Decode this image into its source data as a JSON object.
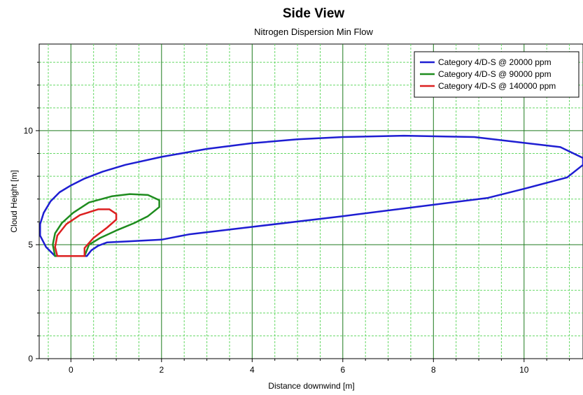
{
  "title": "Side View",
  "subtitle": "Nitrogen Dispersion Min Flow",
  "chart_data": {
    "type": "line",
    "title": "Side View",
    "subtitle": "Nitrogen Dispersion Min Flow",
    "xlabel": "Distance downwind [m]",
    "ylabel": "Cloud Height [m]",
    "xlim": [
      -0.7,
      11.3
    ],
    "ylim": [
      0,
      13.8
    ],
    "xticks": [
      0,
      2,
      4,
      6,
      8,
      10
    ],
    "yticks": [
      0,
      5,
      10
    ],
    "grid": true,
    "legend_position": "top-right",
    "series": [
      {
        "name": "Category 4/D-S @ 20000 ppm",
        "color": "#1e1ed2",
        "points": [
          [
            -0.35,
            4.5
          ],
          [
            -0.55,
            4.9
          ],
          [
            -0.68,
            5.4
          ],
          [
            -0.68,
            5.9
          ],
          [
            -0.6,
            6.4
          ],
          [
            -0.45,
            6.9
          ],
          [
            -0.25,
            7.3
          ],
          [
            0.0,
            7.6
          ],
          [
            0.3,
            7.9
          ],
          [
            0.7,
            8.2
          ],
          [
            1.2,
            8.5
          ],
          [
            2.0,
            8.85
          ],
          [
            3.0,
            9.2
          ],
          [
            4.0,
            9.45
          ],
          [
            5.0,
            9.62
          ],
          [
            6.0,
            9.72
          ],
          [
            7.35,
            9.78
          ],
          [
            8.9,
            9.72
          ],
          [
            10.8,
            9.28
          ],
          [
            11.3,
            8.8
          ],
          [
            11.3,
            8.5
          ],
          [
            10.95,
            7.95
          ],
          [
            10.0,
            7.45
          ],
          [
            9.2,
            7.05
          ],
          [
            8.0,
            6.75
          ],
          [
            6.0,
            6.25
          ],
          [
            4.0,
            5.78
          ],
          [
            2.6,
            5.45
          ],
          [
            2.0,
            5.22
          ],
          [
            1.3,
            5.15
          ],
          [
            0.8,
            5.1
          ],
          [
            0.6,
            4.95
          ],
          [
            0.45,
            4.75
          ],
          [
            0.35,
            4.5
          ],
          [
            -0.35,
            4.5
          ]
        ]
      },
      {
        "name": "Category 4/D-S @ 90000 ppm",
        "color": "#1e8c1e",
        "points": [
          [
            0.3,
            4.5
          ],
          [
            -0.35,
            4.5
          ],
          [
            -0.4,
            5.0
          ],
          [
            -0.35,
            5.5
          ],
          [
            -0.2,
            5.95
          ],
          [
            0.05,
            6.4
          ],
          [
            0.4,
            6.85
          ],
          [
            0.9,
            7.12
          ],
          [
            1.3,
            7.22
          ],
          [
            1.7,
            7.18
          ],
          [
            1.95,
            6.95
          ],
          [
            1.95,
            6.65
          ],
          [
            1.7,
            6.25
          ],
          [
            1.4,
            5.95
          ],
          [
            1.0,
            5.62
          ],
          [
            0.65,
            5.3
          ],
          [
            0.4,
            5.0
          ],
          [
            0.3,
            4.5
          ]
        ]
      },
      {
        "name": "Category 4/D-S @ 140000 ppm",
        "color": "#dc2020",
        "points": [
          [
            0.3,
            4.5
          ],
          [
            -0.3,
            4.5
          ],
          [
            -0.35,
            4.9
          ],
          [
            -0.3,
            5.4
          ],
          [
            -0.1,
            5.9
          ],
          [
            0.2,
            6.3
          ],
          [
            0.6,
            6.55
          ],
          [
            0.85,
            6.55
          ],
          [
            1.0,
            6.35
          ],
          [
            1.0,
            6.1
          ],
          [
            0.8,
            5.75
          ],
          [
            0.5,
            5.3
          ],
          [
            0.3,
            4.85
          ],
          [
            0.3,
            4.5
          ]
        ]
      }
    ]
  }
}
